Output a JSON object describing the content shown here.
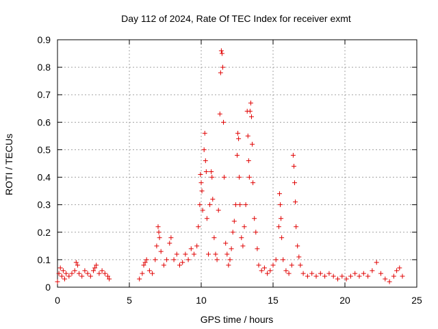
{
  "chart_data": {
    "type": "scatter",
    "title": "Day 112 of 2024, Rate Of TEC Index for receiver exmt",
    "xlabel": "GPS time / hours",
    "ylabel": "ROTI / TECUs",
    "xlim": [
      0,
      25
    ],
    "ylim": [
      0,
      0.9
    ],
    "xticks": [
      0,
      5,
      10,
      15,
      20,
      25
    ],
    "yticks": [
      0,
      0.1,
      0.2,
      0.3,
      0.4,
      0.5,
      0.6,
      0.7,
      0.8,
      0.9
    ],
    "grid": true,
    "marker": "+",
    "color": "#e00000",
    "series": [
      {
        "points": [
          [
            0.0,
            0.02
          ],
          [
            0.1,
            0.05
          ],
          [
            0.2,
            0.07
          ],
          [
            0.3,
            0.04
          ],
          [
            0.4,
            0.06
          ],
          [
            0.5,
            0.03
          ],
          [
            0.6,
            0.05
          ],
          [
            0.8,
            0.04
          ],
          [
            1.0,
            0.05
          ],
          [
            1.2,
            0.06
          ],
          [
            1.3,
            0.09
          ],
          [
            1.4,
            0.08
          ],
          [
            1.5,
            0.05
          ],
          [
            1.7,
            0.04
          ],
          [
            1.9,
            0.06
          ],
          [
            2.1,
            0.05
          ],
          [
            2.3,
            0.04
          ],
          [
            2.5,
            0.06
          ],
          [
            2.6,
            0.07
          ],
          [
            2.7,
            0.08
          ],
          [
            2.9,
            0.05
          ],
          [
            3.1,
            0.06
          ],
          [
            3.3,
            0.05
          ],
          [
            3.5,
            0.04
          ],
          [
            3.6,
            0.03
          ],
          [
            5.7,
            0.03
          ],
          [
            5.9,
            0.05
          ],
          [
            6.0,
            0.08
          ],
          [
            6.1,
            0.09
          ],
          [
            6.2,
            0.1
          ],
          [
            6.4,
            0.06
          ],
          [
            6.6,
            0.05
          ],
          [
            6.8,
            0.1
          ],
          [
            6.9,
            0.15
          ],
          [
            7.0,
            0.22
          ],
          [
            7.05,
            0.2
          ],
          [
            7.1,
            0.18
          ],
          [
            7.2,
            0.13
          ],
          [
            7.4,
            0.08
          ],
          [
            7.6,
            0.1
          ],
          [
            7.8,
            0.16
          ],
          [
            7.9,
            0.18
          ],
          [
            8.1,
            0.1
          ],
          [
            8.3,
            0.12
          ],
          [
            8.5,
            0.08
          ],
          [
            8.7,
            0.09
          ],
          [
            8.9,
            0.12
          ],
          [
            9.1,
            0.1
          ],
          [
            9.3,
            0.14
          ],
          [
            9.5,
            0.12
          ],
          [
            9.7,
            0.15
          ],
          [
            9.8,
            0.22
          ],
          [
            9.9,
            0.3
          ],
          [
            9.95,
            0.41
          ],
          [
            10.0,
            0.38
          ],
          [
            10.05,
            0.35
          ],
          [
            10.1,
            0.28
          ],
          [
            10.2,
            0.5
          ],
          [
            10.25,
            0.56
          ],
          [
            10.3,
            0.46
          ],
          [
            10.35,
            0.42
          ],
          [
            10.4,
            0.25
          ],
          [
            10.5,
            0.12
          ],
          [
            10.6,
            0.3
          ],
          [
            10.7,
            0.42
          ],
          [
            10.75,
            0.4
          ],
          [
            10.8,
            0.32
          ],
          [
            10.9,
            0.18
          ],
          [
            11.0,
            0.12
          ],
          [
            11.1,
            0.1
          ],
          [
            11.2,
            0.28
          ],
          [
            11.3,
            0.63
          ],
          [
            11.35,
            0.78
          ],
          [
            11.4,
            0.86
          ],
          [
            11.45,
            0.85
          ],
          [
            11.5,
            0.8
          ],
          [
            11.55,
            0.6
          ],
          [
            11.6,
            0.4
          ],
          [
            11.7,
            0.16
          ],
          [
            11.8,
            0.12
          ],
          [
            11.9,
            0.08
          ],
          [
            12.0,
            0.1
          ],
          [
            12.1,
            0.14
          ],
          [
            12.2,
            0.2
          ],
          [
            12.3,
            0.24
          ],
          [
            12.4,
            0.3
          ],
          [
            12.5,
            0.48
          ],
          [
            12.55,
            0.56
          ],
          [
            12.6,
            0.54
          ],
          [
            12.65,
            0.4
          ],
          [
            12.7,
            0.3
          ],
          [
            12.8,
            0.18
          ],
          [
            12.9,
            0.15
          ],
          [
            13.0,
            0.22
          ],
          [
            13.1,
            0.3
          ],
          [
            13.2,
            0.64
          ],
          [
            13.25,
            0.55
          ],
          [
            13.3,
            0.46
          ],
          [
            13.35,
            0.4
          ],
          [
            13.4,
            0.64
          ],
          [
            13.45,
            0.67
          ],
          [
            13.5,
            0.62
          ],
          [
            13.55,
            0.52
          ],
          [
            13.6,
            0.38
          ],
          [
            13.7,
            0.25
          ],
          [
            13.8,
            0.2
          ],
          [
            13.9,
            0.14
          ],
          [
            14.0,
            0.08
          ],
          [
            14.2,
            0.06
          ],
          [
            14.4,
            0.07
          ],
          [
            14.6,
            0.05
          ],
          [
            14.8,
            0.06
          ],
          [
            15.0,
            0.08
          ],
          [
            15.2,
            0.1
          ],
          [
            15.4,
            0.22
          ],
          [
            15.45,
            0.34
          ],
          [
            15.5,
            0.3
          ],
          [
            15.55,
            0.25
          ],
          [
            15.6,
            0.18
          ],
          [
            15.7,
            0.1
          ],
          [
            15.9,
            0.06
          ],
          [
            16.1,
            0.05
          ],
          [
            16.3,
            0.08
          ],
          [
            16.4,
            0.48
          ],
          [
            16.45,
            0.44
          ],
          [
            16.5,
            0.38
          ],
          [
            16.55,
            0.31
          ],
          [
            16.6,
            0.22
          ],
          [
            16.7,
            0.15
          ],
          [
            16.8,
            0.11
          ],
          [
            16.9,
            0.08
          ],
          [
            17.1,
            0.05
          ],
          [
            17.4,
            0.04
          ],
          [
            17.7,
            0.05
          ],
          [
            18.0,
            0.04
          ],
          [
            18.3,
            0.05
          ],
          [
            18.6,
            0.04
          ],
          [
            18.9,
            0.05
          ],
          [
            19.2,
            0.04
          ],
          [
            19.5,
            0.03
          ],
          [
            19.8,
            0.04
          ],
          [
            20.1,
            0.03
          ],
          [
            20.4,
            0.04
          ],
          [
            20.7,
            0.05
          ],
          [
            21.0,
            0.04
          ],
          [
            21.3,
            0.05
          ],
          [
            21.6,
            0.04
          ],
          [
            21.9,
            0.06
          ],
          [
            22.2,
            0.09
          ],
          [
            22.5,
            0.05
          ],
          [
            22.8,
            0.03
          ],
          [
            23.1,
            0.02
          ],
          [
            23.4,
            0.04
          ],
          [
            23.6,
            0.06
          ],
          [
            23.8,
            0.07
          ],
          [
            24.0,
            0.04
          ]
        ]
      }
    ]
  }
}
